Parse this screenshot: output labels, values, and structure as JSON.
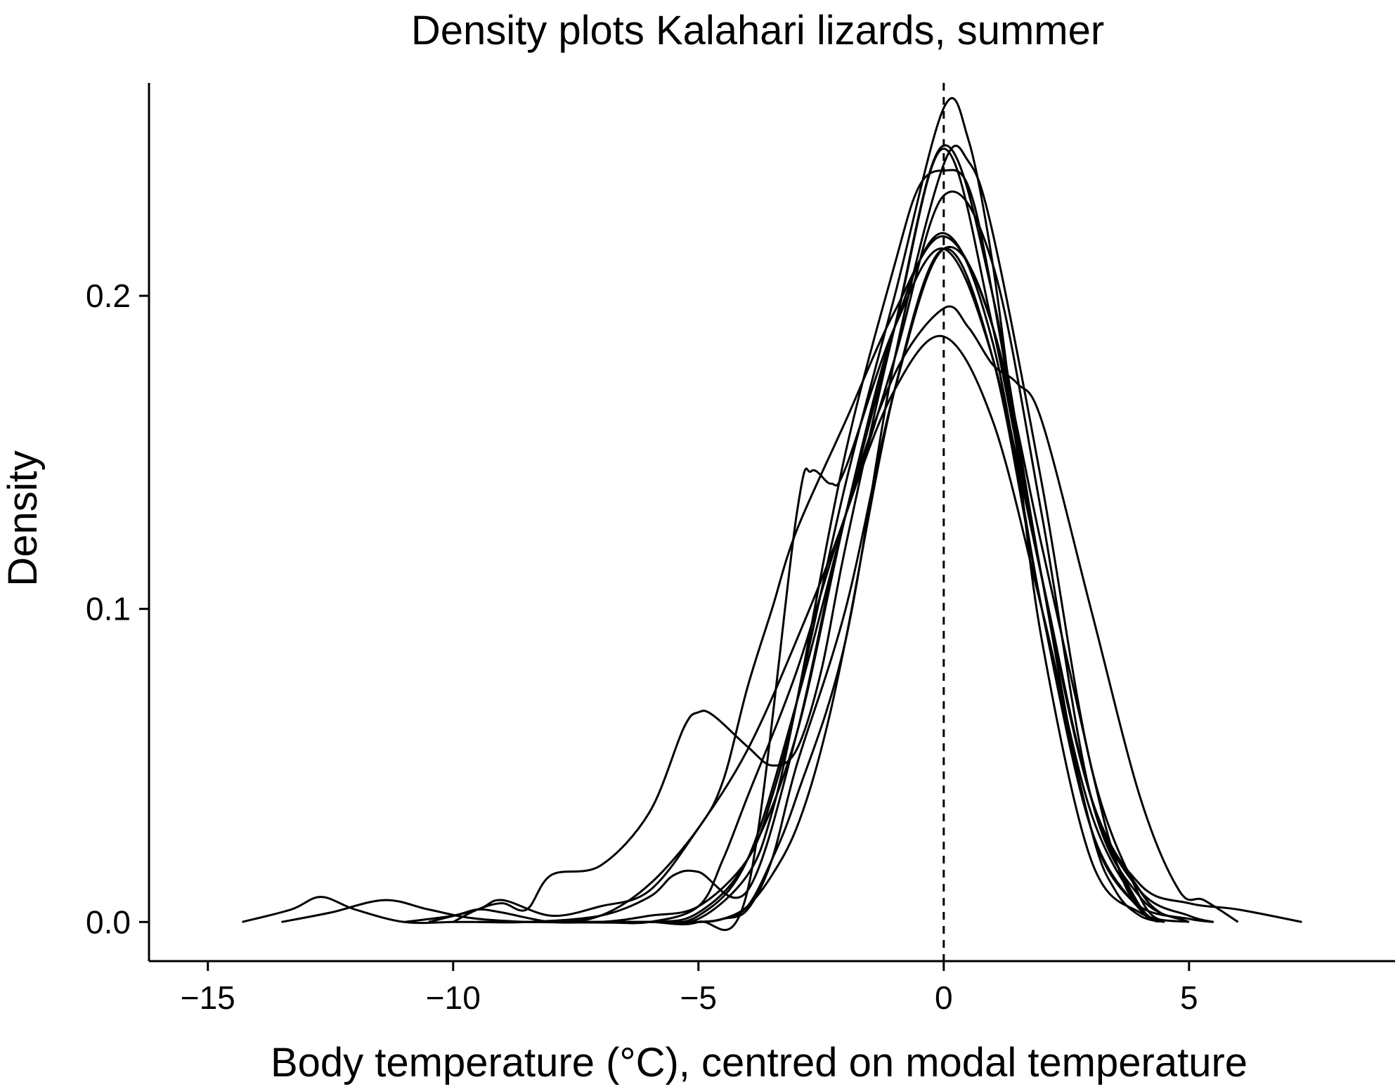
{
  "chart_data": {
    "type": "line",
    "title": "Density plots Kalahari lizards, summer",
    "xlabel": "Body temperature (°C), centred on modal temperature",
    "ylabel": "Density",
    "xlim": [
      -16.2,
      9.2
    ],
    "ylim": [
      -0.0125,
      0.268
    ],
    "x_ticks": [
      -15,
      -10,
      -5,
      0,
      5
    ],
    "x_tick_labels": [
      "−15",
      "−10",
      "−5",
      "0",
      "5"
    ],
    "y_ticks": [
      0.0,
      0.1,
      0.2
    ],
    "y_tick_labels": [
      "0.0",
      "0.1",
      "0.2"
    ],
    "grid": false,
    "legend": "none",
    "reference_line": {
      "x": 0,
      "style": "dashed"
    },
    "line_color": "#000000",
    "series": [
      {
        "x": [
          -14.3,
          -13.3,
          -12.7,
          -12.0,
          -11.0,
          -10.0,
          -9.0,
          -8.0,
          -6.0,
          -5.0,
          -4.0,
          -3.0,
          -2.0,
          -1.0,
          0.0,
          1.0,
          2.0,
          3.0,
          4.0,
          5.0,
          6.0,
          7.3
        ],
        "y": [
          0.0,
          0.004,
          0.008,
          0.004,
          0.0,
          0.0,
          0.0,
          0.0,
          0.0,
          0.002,
          0.02,
          0.07,
          0.13,
          0.19,
          0.247,
          0.19,
          0.11,
          0.04,
          0.012,
          0.006,
          0.004,
          0.0
        ]
      },
      {
        "x": [
          -13.5,
          -12.5,
          -11.4,
          -10.5,
          -9.5,
          -8.0,
          -7.0,
          -6.0,
          -5.0,
          -4.5,
          -4.0,
          -3.5,
          -3.0,
          -2.0,
          -1.0,
          0.0,
          1.0,
          2.0,
          3.0,
          3.5,
          4.0,
          5.0,
          5.5
        ],
        "y": [
          0.0,
          0.003,
          0.007,
          0.004,
          0.001,
          0.0,
          0.002,
          0.012,
          0.03,
          0.045,
          0.075,
          0.1,
          0.125,
          0.16,
          0.195,
          0.219,
          0.19,
          0.12,
          0.05,
          0.02,
          0.005,
          0.001,
          0.0
        ]
      },
      {
        "x": [
          -11.0,
          -10.0,
          -9.5,
          -9.0,
          -8.0,
          -7.0,
          -6.0,
          -5.0,
          -4.0,
          -3.0,
          -2.7,
          -2.3,
          -2.0,
          -1.0,
          0.0,
          1.0,
          2.0,
          3.0,
          4.0,
          5.0,
          5.5
        ],
        "y": [
          0.0,
          0.002,
          0.004,
          0.003,
          0.0,
          0.0,
          0.0,
          0.0,
          0.01,
          0.13,
          0.144,
          0.14,
          0.145,
          0.19,
          0.215,
          0.18,
          0.11,
          0.04,
          0.01,
          0.002,
          0.0
        ]
      },
      {
        "x": [
          -10.0,
          -9.5,
          -9.0,
          -8.5,
          -8.0,
          -7.0,
          -6.0,
          -5.3,
          -5.0,
          -4.7,
          -4.0,
          -3.5,
          -3.0,
          -2.5,
          -2.0,
          -1.0,
          0.0,
          1.0,
          2.0,
          3.0,
          4.0,
          4.5
        ],
        "y": [
          0.0,
          0.004,
          0.006,
          0.004,
          0.015,
          0.018,
          0.035,
          0.062,
          0.067,
          0.066,
          0.056,
          0.05,
          0.055,
          0.08,
          0.12,
          0.19,
          0.248,
          0.2,
          0.11,
          0.04,
          0.01,
          0.002
        ]
      },
      {
        "x": [
          -10.5,
          -9.5,
          -9.0,
          -8.0,
          -7.0,
          -6.0,
          -5.0,
          -4.0,
          -3.0,
          -2.0,
          -1.0,
          0.0,
          1.0,
          2.0,
          3.0,
          4.0,
          5.0
        ],
        "y": [
          0.0,
          0.004,
          0.007,
          0.002,
          0.005,
          0.01,
          0.03,
          0.055,
          0.09,
          0.13,
          0.18,
          0.232,
          0.21,
          0.13,
          0.04,
          0.008,
          0.0
        ]
      },
      {
        "x": [
          -9.5,
          -8.5,
          -7.0,
          -6.0,
          -5.5,
          -5.0,
          -4.0,
          -3.0,
          -2.0,
          -1.0,
          0.0,
          0.5,
          1.0,
          1.5,
          2.0,
          3.0,
          4.0,
          4.8,
          5.3,
          6.0
        ],
        "y": [
          0.0,
          0.0,
          0.002,
          0.008,
          0.015,
          0.016,
          0.01,
          0.06,
          0.13,
          0.175,
          0.196,
          0.19,
          0.178,
          0.172,
          0.16,
          0.1,
          0.04,
          0.01,
          0.007,
          0.0
        ]
      },
      {
        "x": [
          -8.5,
          -7.0,
          -6.0,
          -5.0,
          -4.0,
          -3.5,
          -3.0,
          -2.0,
          -1.0,
          0.0,
          0.5,
          1.0,
          1.5,
          2.0,
          3.0,
          4.0,
          5.0
        ],
        "y": [
          0.0,
          0.0,
          0.002,
          0.005,
          0.02,
          0.04,
          0.07,
          0.14,
          0.2,
          0.26,
          0.25,
          0.21,
          0.15,
          0.09,
          0.02,
          0.003,
          0.0
        ]
      },
      {
        "x": [
          -8.0,
          -7.0,
          -6.0,
          -5.0,
          -4.5,
          -4.0,
          -3.0,
          -2.0,
          -1.0,
          0.0,
          1.0,
          2.0,
          3.0,
          4.0,
          4.5
        ],
        "y": [
          0.0,
          0.0,
          0.0,
          0.005,
          0.02,
          0.04,
          0.08,
          0.13,
          0.17,
          0.187,
          0.16,
          0.1,
          0.035,
          0.005,
          0.0
        ]
      },
      {
        "x": [
          -8.0,
          -6.0,
          -5.0,
          -4.0,
          -3.5,
          -3.0,
          -2.0,
          -1.0,
          -0.5,
          0.0,
          0.5,
          1.0,
          2.0,
          3.0,
          4.0,
          4.5
        ],
        "y": [
          0.0,
          0.0,
          0.001,
          0.015,
          0.035,
          0.07,
          0.15,
          0.21,
          0.235,
          0.24,
          0.235,
          0.2,
          0.11,
          0.03,
          0.004,
          0.0
        ]
      },
      {
        "x": [
          -8.0,
          -6.0,
          -5.0,
          -4.0,
          -3.0,
          -2.0,
          -1.0,
          0.0,
          1.0,
          2.0,
          3.0,
          4.0,
          4.5
        ],
        "y": [
          0.0,
          0.0,
          0.003,
          0.02,
          0.06,
          0.13,
          0.19,
          0.22,
          0.185,
          0.1,
          0.03,
          0.004,
          0.0
        ]
      },
      {
        "x": [
          -8.0,
          -6.0,
          -5.0,
          -4.5,
          -4.0,
          -3.5,
          -3.0,
          -2.0,
          -1.0,
          0.0,
          1.0,
          2.0,
          3.0,
          4.0,
          4.5
        ],
        "y": [
          0.0,
          0.0,
          0.0,
          0.001,
          0.004,
          0.02,
          0.05,
          0.1,
          0.17,
          0.215,
          0.19,
          0.11,
          0.04,
          0.005,
          0.0
        ]
      },
      {
        "x": [
          -8.0,
          -6.0,
          -5.0,
          -4.5,
          -4.0,
          -3.5,
          -3.0,
          -2.0,
          -1.0,
          0.0,
          0.5,
          1.0,
          2.0,
          3.0,
          4.0,
          4.5
        ],
        "y": [
          0.0,
          0.0,
          0.0,
          0.001,
          0.005,
          0.02,
          0.04,
          0.09,
          0.18,
          0.242,
          0.243,
          0.22,
          0.14,
          0.05,
          0.008,
          0.0
        ]
      },
      {
        "x": [
          -6.0,
          -5.0,
          -4.5,
          -4.0,
          -3.5,
          -3.0,
          -2.5,
          -2.0,
          -1.0,
          0.0,
          1.0,
          2.0,
          3.0,
          3.5,
          4.0,
          4.5
        ],
        "y": [
          0.0,
          0.0,
          0.001,
          0.005,
          0.015,
          0.03,
          0.055,
          0.09,
          0.17,
          0.215,
          0.18,
          0.1,
          0.03,
          0.01,
          0.002,
          0.0
        ]
      }
    ]
  }
}
